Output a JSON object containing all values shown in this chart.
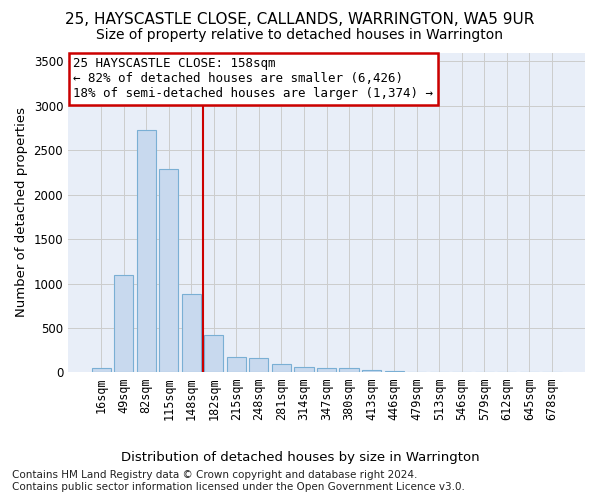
{
  "title1": "25, HAYSCASTLE CLOSE, CALLANDS, WARRINGTON, WA5 9UR",
  "title2": "Size of property relative to detached houses in Warrington",
  "xlabel": "Distribution of detached houses by size in Warrington",
  "ylabel": "Number of detached properties",
  "categories": [
    "16sqm",
    "49sqm",
    "82sqm",
    "115sqm",
    "148sqm",
    "182sqm",
    "215sqm",
    "248sqm",
    "281sqm",
    "314sqm",
    "347sqm",
    "380sqm",
    "413sqm",
    "446sqm",
    "479sqm",
    "513sqm",
    "546sqm",
    "579sqm",
    "612sqm",
    "645sqm",
    "678sqm"
  ],
  "values": [
    50,
    1100,
    2730,
    2290,
    880,
    420,
    175,
    165,
    95,
    65,
    50,
    50,
    30,
    20,
    0,
    0,
    0,
    0,
    0,
    0,
    0
  ],
  "bar_color": "#c8d9ee",
  "bar_edge_color": "#7aafd4",
  "grid_color": "#cccccc",
  "background_color": "#e8eef8",
  "vline_x_index": 4,
  "vline_color": "#cc0000",
  "annotation_text_line1": "25 HAYSCASTLE CLOSE: 158sqm",
  "annotation_text_line2": "← 82% of detached houses are smaller (6,426)",
  "annotation_text_line3": "18% of semi-detached houses are larger (1,374) →",
  "annotation_box_color": "#cc0000",
  "footer1": "Contains HM Land Registry data © Crown copyright and database right 2024.",
  "footer2": "Contains public sector information licensed under the Open Government Licence v3.0.",
  "ylim": [
    0,
    3600
  ],
  "yticks": [
    0,
    500,
    1000,
    1500,
    2000,
    2500,
    3000,
    3500
  ],
  "title1_fontsize": 11,
  "title2_fontsize": 10,
  "axis_label_fontsize": 9.5,
  "tick_fontsize": 8.5,
  "footer_fontsize": 7.5,
  "annotation_fontsize": 9
}
